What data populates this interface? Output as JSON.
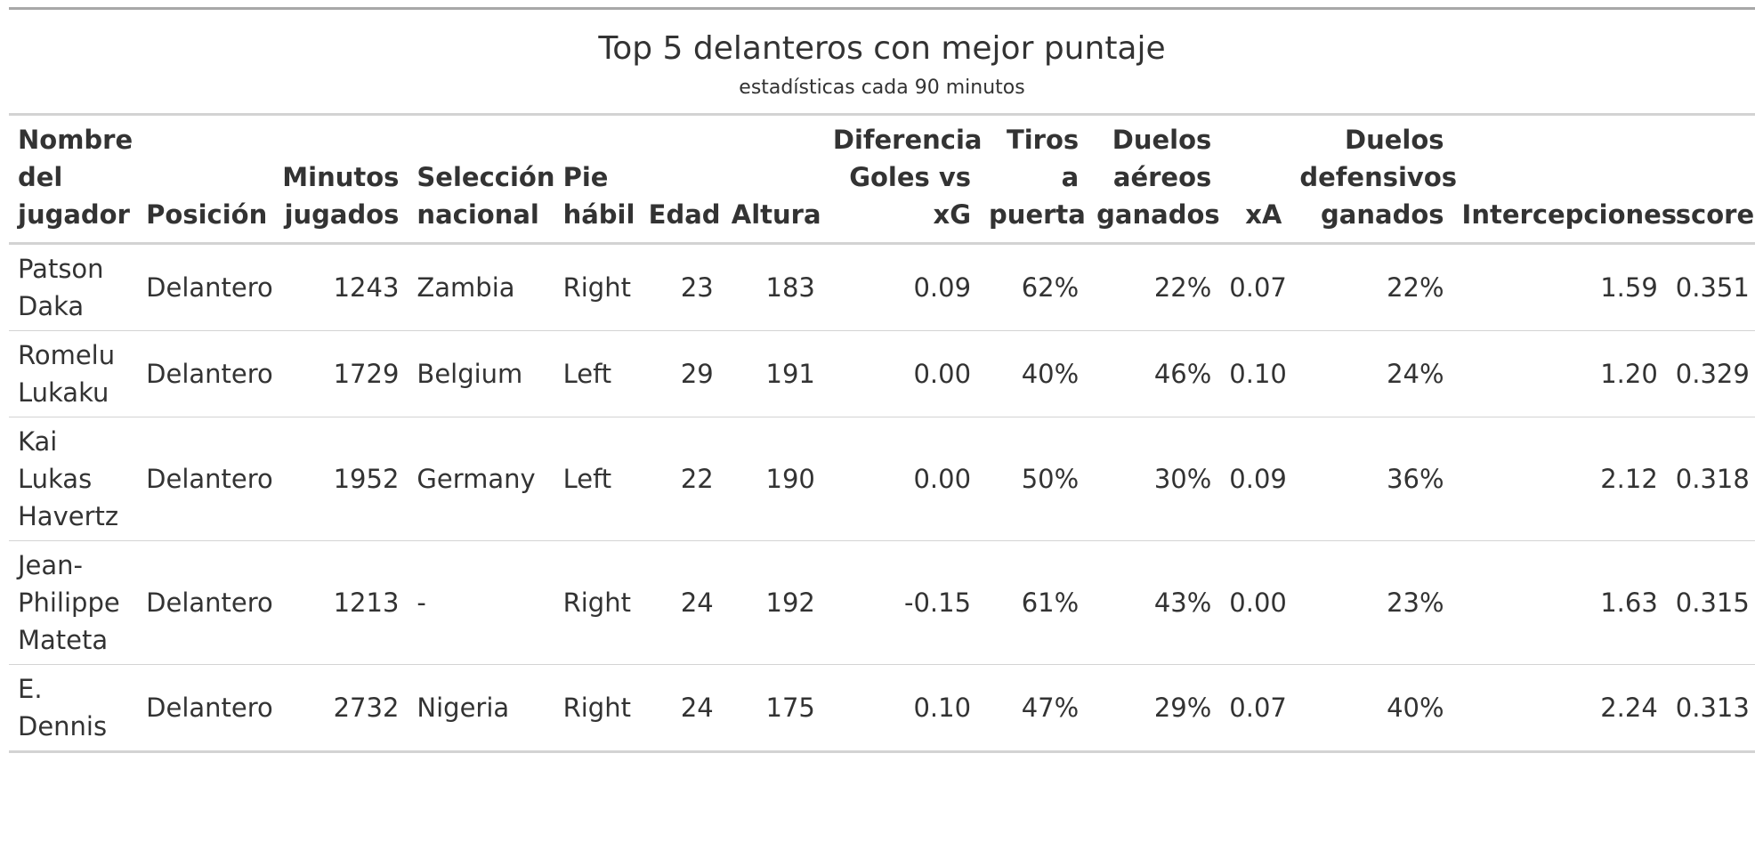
{
  "header": {
    "title": "Top 5 delanteros con mejor puntaje",
    "subtitle": "estadísticas cada 90 minutos"
  },
  "table": {
    "columns": [
      "Nombre del jugador",
      "Posición",
      "Minutos jugados",
      "Selección nacional",
      "Pie hábil",
      "Edad",
      "Altura",
      "Diferencia Goles vs xG",
      "Tiros a puerta",
      "Duelos aéreos ganados",
      "xA",
      "Duelos defensivos ganados",
      "Intercepciones",
      "score"
    ],
    "rows": [
      [
        "Patson Daka",
        "Delantero",
        "1243",
        "Zambia",
        "Right",
        "23",
        "183",
        "0.09",
        "62%",
        "22%",
        "0.07",
        "22%",
        "1.59",
        "0.351"
      ],
      [
        "Romelu Lukaku",
        "Delantero",
        "1729",
        "Belgium",
        "Left",
        "29",
        "191",
        "0.00",
        "40%",
        "46%",
        "0.10",
        "24%",
        "1.20",
        "0.329"
      ],
      [
        "Kai Lukas Havertz",
        "Delantero",
        "1952",
        "Germany",
        "Left",
        "22",
        "190",
        "0.00",
        "50%",
        "30%",
        "0.09",
        "36%",
        "2.12",
        "0.318"
      ],
      [
        "Jean-Philippe Mateta",
        "Delantero",
        "1213",
        "-",
        "Right",
        "24",
        "192",
        "-0.15",
        "61%",
        "43%",
        "0.00",
        "23%",
        "1.63",
        "0.315"
      ],
      [
        "E. Dennis",
        "Delantero",
        "2732",
        "Nigeria",
        "Right",
        "24",
        "175",
        "0.10",
        "47%",
        "29%",
        "0.07",
        "40%",
        "2.24",
        "0.313"
      ]
    ]
  }
}
